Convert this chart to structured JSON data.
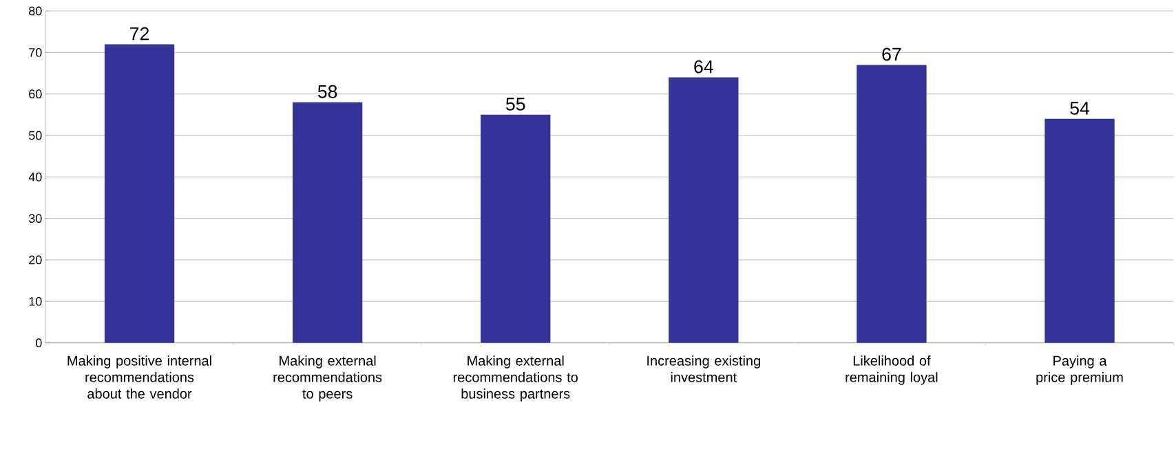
{
  "chart_data": {
    "type": "bar",
    "categories": [
      "Making positive internal recommendations about the vendor",
      "Making external recommendations to peers",
      "Making external recommendations to business partners",
      "Increasing existing investment",
      "Likelihood of remaining loyal",
      "Paying a price premium"
    ],
    "values": [
      72,
      58,
      55,
      64,
      67,
      54
    ],
    "color": "#333399",
    "ylim": [
      0,
      80
    ],
    "yticks": [
      0,
      10,
      20,
      30,
      40,
      50,
      60,
      70,
      80
    ],
    "grid": "y",
    "data_labels": true
  }
}
